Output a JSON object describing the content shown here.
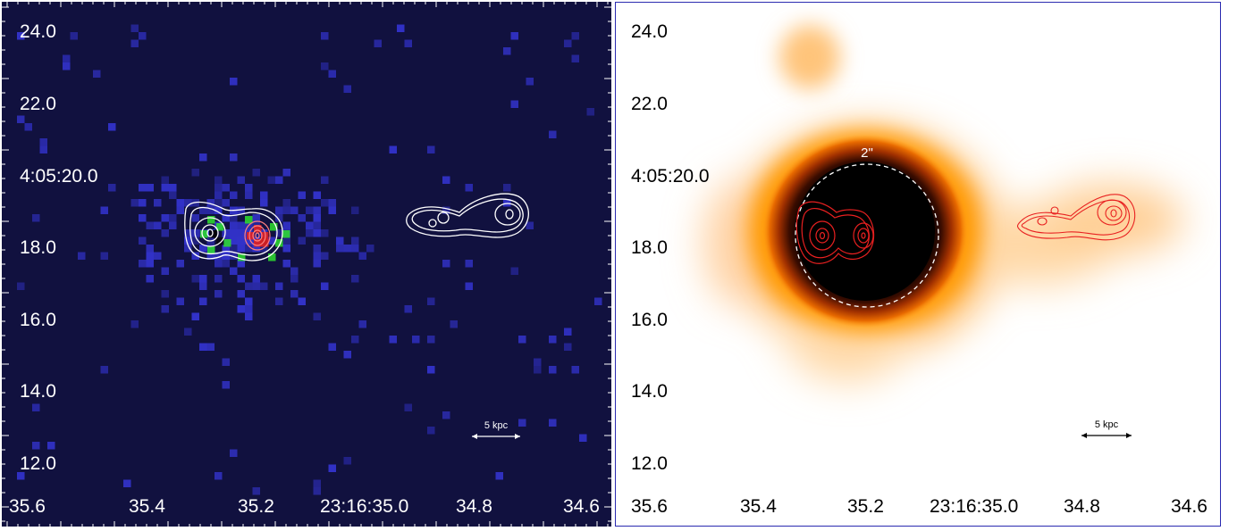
{
  "left_panel": {
    "background": "#11113f",
    "y_ticks": [
      "24.0",
      "22.0",
      "4:05:20.0",
      "18.0",
      "16.0",
      "14.0",
      "12.0"
    ],
    "x_ticks": [
      "35.6",
      "35.4",
      "35.2",
      "23:16:35.0",
      "34.8",
      "34.6"
    ],
    "scale_bar_label": "5 kpc",
    "colors": {
      "pixel": "#3232c8",
      "core_green": "#2ee02e",
      "core_red": "#e02020",
      "contour": "#ffffff"
    }
  },
  "right_panel": {
    "background": "#ffffff",
    "border_color": "#2a2ab0",
    "y_ticks": [
      "24.0",
      "22.0",
      "4:05:20.0",
      "18.0",
      "16.0",
      "14.0",
      "12.0"
    ],
    "x_ticks": [
      "35.6",
      "35.4",
      "35.2",
      "23:16:35.0",
      "34.8",
      "34.6"
    ],
    "scale_bar_label": "5 kpc",
    "aperture_label": "2\"",
    "colors": {
      "glow": "#ff9900",
      "contour": "#e82020",
      "aperture": "#ffffff"
    }
  }
}
